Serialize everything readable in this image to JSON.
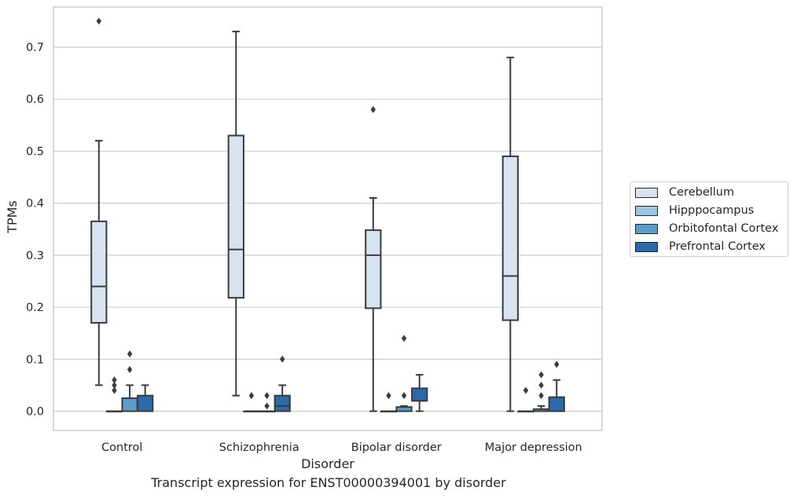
{
  "chart_data": {
    "type": "box",
    "title": "",
    "caption": "Transcript expression for ENST00000394001 by disorder",
    "xlabel": "Disorder",
    "ylabel": "TPMs",
    "ylim": [
      -0.037,
      0.777
    ],
    "yticks": [
      "0.0",
      "0.1",
      "0.2",
      "0.3",
      "0.4",
      "0.5",
      "0.6",
      "0.7"
    ],
    "grid": true,
    "legend_position": "right",
    "categories": [
      "Control",
      "Schizophrenia",
      "Bipolar disorder",
      "Major depression"
    ],
    "series": [
      {
        "name": "Cerebellum",
        "color": "#d6e4f2",
        "boxes": [
          {
            "whislo": 0.05,
            "q1": 0.17,
            "med": 0.24,
            "q3": 0.365,
            "whishi": 0.52,
            "fliers": [
              0.75
            ]
          },
          {
            "whislo": 0.03,
            "q1": 0.218,
            "med": 0.311,
            "q3": 0.53,
            "whishi": 0.73,
            "fliers": []
          },
          {
            "whislo": 0.0,
            "q1": 0.198,
            "med": 0.3,
            "q3": 0.348,
            "whishi": 0.41,
            "fliers": [
              0.58
            ]
          },
          {
            "whislo": 0.0,
            "q1": 0.175,
            "med": 0.26,
            "q3": 0.49,
            "whishi": 0.68,
            "fliers": []
          }
        ]
      },
      {
        "name": "Hipppocampus",
        "color": "#9cc7e0",
        "boxes": [
          {
            "whislo": 0.0,
            "q1": 0.0,
            "med": 0.0,
            "q3": 0.0,
            "whishi": 0.0,
            "fliers": [
              0.04,
              0.05,
              0.06
            ]
          },
          {
            "whislo": 0.0,
            "q1": 0.0,
            "med": 0.0,
            "q3": 0.0,
            "whishi": 0.0,
            "fliers": [
              0.03
            ]
          },
          {
            "whislo": 0.0,
            "q1": 0.0,
            "med": 0.0,
            "q3": 0.0,
            "whishi": 0.0,
            "fliers": [
              0.03
            ]
          },
          {
            "whislo": 0.0,
            "q1": 0.0,
            "med": 0.0,
            "q3": 0.0,
            "whishi": 0.0,
            "fliers": [
              0.04
            ]
          }
        ]
      },
      {
        "name": "Orbitofontal Cortex",
        "color": "#5b9cc9",
        "boxes": [
          {
            "whislo": 0.0,
            "q1": 0.0,
            "med": 0.0,
            "q3": 0.025,
            "whishi": 0.05,
            "fliers": [
              0.08,
              0.11
            ]
          },
          {
            "whislo": 0.0,
            "q1": 0.0,
            "med": 0.0,
            "q3": 0.0,
            "whishi": 0.0,
            "fliers": [
              0.01,
              0.03
            ]
          },
          {
            "whislo": 0.0,
            "q1": 0.0,
            "med": 0.0,
            "q3": 0.008,
            "whishi": 0.01,
            "fliers": [
              0.03,
              0.14
            ]
          },
          {
            "whislo": 0.0,
            "q1": 0.0,
            "med": 0.0,
            "q3": 0.004,
            "whishi": 0.01,
            "fliers": [
              0.03,
              0.05,
              0.07
            ]
          }
        ]
      },
      {
        "name": "Prefrontal Cortex",
        "color": "#2a6aab",
        "boxes": [
          {
            "whislo": 0.0,
            "q1": 0.0,
            "med": 0.0,
            "q3": 0.03,
            "whishi": 0.05,
            "fliers": []
          },
          {
            "whislo": 0.0,
            "q1": 0.0,
            "med": 0.01,
            "q3": 0.03,
            "whishi": 0.05,
            "fliers": [
              0.1
            ]
          },
          {
            "whislo": 0.0,
            "q1": 0.02,
            "med": 0.02,
            "q3": 0.044,
            "whishi": 0.07,
            "fliers": []
          },
          {
            "whislo": 0.0,
            "q1": 0.0,
            "med": 0.0,
            "q3": 0.027,
            "whishi": 0.06,
            "fliers": [
              0.09
            ]
          }
        ]
      }
    ]
  }
}
